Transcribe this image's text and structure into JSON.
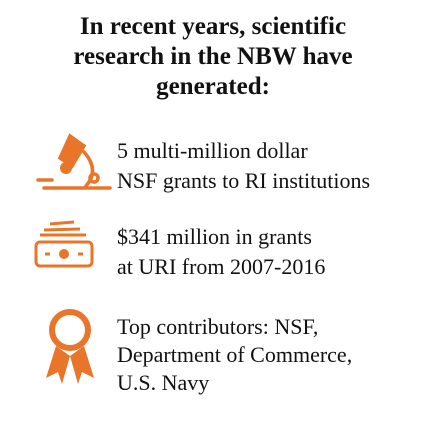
{
  "title": [
    "In recent years, scientific",
    "research in the NBW have",
    "generated:"
  ],
  "items": [
    {
      "lines": [
        "5 multi-million dollar",
        "NSF grants to RI institutions"
      ]
    },
    {
      "lines": [
        "$341 million in grants",
        "at URI from 2007-2016"
      ]
    },
    {
      "lines": [
        "Top contributors: NSF,",
        "Department of Commerce,",
        "U.S. Navy"
      ]
    }
  ]
}
